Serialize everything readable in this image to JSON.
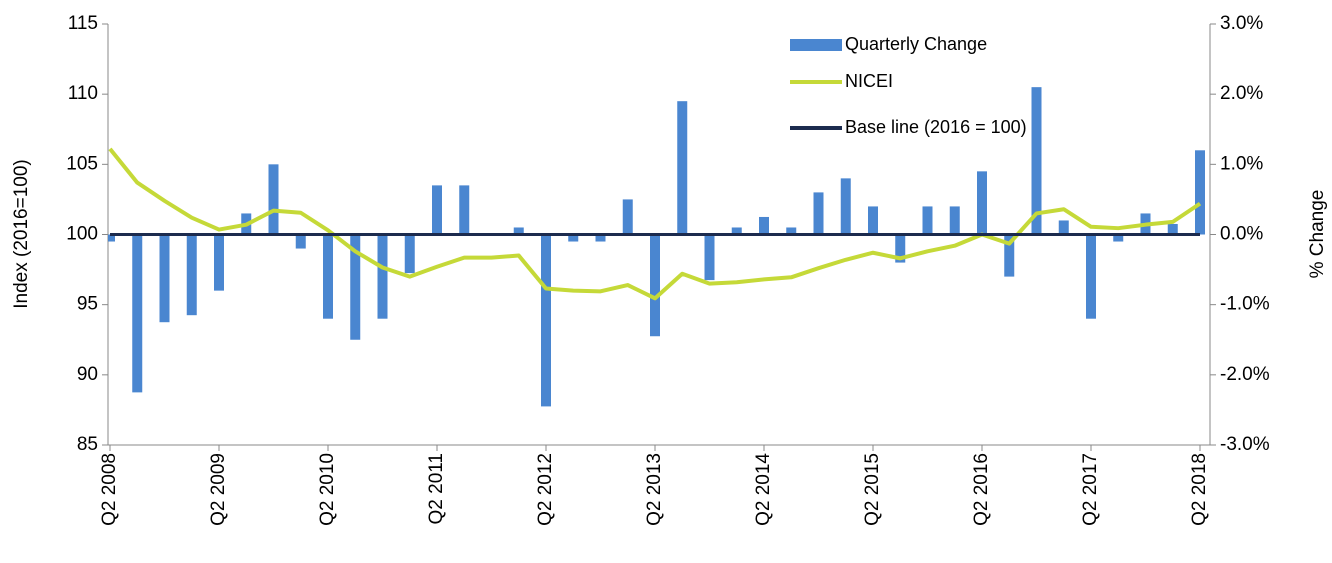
{
  "chart_data": {
    "type": "bar",
    "y_label": "Index (2016=100)",
    "y2_label": "% Change",
    "categories": [
      "Q2 2008",
      null,
      null,
      null,
      "Q2 2009",
      null,
      null,
      null,
      "Q2 2010",
      null,
      null,
      null,
      "Q2 2011",
      null,
      null,
      null,
      "Q2 2012",
      null,
      null,
      null,
      "Q2 2013",
      null,
      null,
      null,
      "Q2 2014",
      null,
      null,
      null,
      "Q2 2015",
      null,
      null,
      null,
      "Q2 2016",
      null,
      null,
      null,
      "Q2 2017",
      null,
      null,
      null,
      "Q2 2018"
    ],
    "series": [
      {
        "name": "Quarterly Change",
        "type": "bar",
        "axis": "y2",
        "color": "#4a86d0",
        "values": [
          -0.1,
          -2.25,
          -1.25,
          -1.15,
          -0.8,
          0.3,
          1.0,
          -0.2,
          -1.2,
          -1.5,
          -1.2,
          -0.55,
          0.7,
          0.7,
          0,
          0.1,
          -2.45,
          -0.1,
          -0.1,
          0.5,
          -1.45,
          1.9,
          -0.65,
          0.1,
          0.25,
          0.1,
          0.6,
          0.8,
          0.4,
          -0.4,
          0.4,
          0.4,
          0.9,
          -0.6,
          2.1,
          0.2,
          -1.2,
          -0.1,
          0.3,
          0.15,
          1.2
        ]
      },
      {
        "name": "NICEI",
        "type": "line",
        "color": "#c5d938",
        "values": [
          106.1,
          103.7,
          102.4,
          101.2,
          100.35,
          100.7,
          101.7,
          101.55,
          100.3,
          98.8,
          97.65,
          97.0,
          97.7,
          98.35,
          98.35,
          98.5,
          96.15,
          96.0,
          95.95,
          96.4,
          95.45,
          97.2,
          96.5,
          96.6,
          96.8,
          96.95,
          97.6,
          98.2,
          98.7,
          98.3,
          98.8,
          99.2,
          100.0,
          99.35,
          101.5,
          101.8,
          100.55,
          100.45,
          100.7,
          100.9,
          102.2
        ]
      },
      {
        "name": "Base line (2016 = 100)",
        "type": "line",
        "color": "#1c2b4e",
        "values": [
          100,
          100,
          100,
          100,
          100,
          100,
          100,
          100,
          100,
          100,
          100,
          100,
          100,
          100,
          100,
          100,
          100,
          100,
          100,
          100,
          100,
          100,
          100,
          100,
          100,
          100,
          100,
          100,
          100,
          100,
          100,
          100,
          100,
          100,
          100,
          100,
          100,
          100,
          100,
          100,
          100
        ]
      }
    ],
    "ylim": [
      85,
      115
    ],
    "yticks": [
      85,
      90,
      95,
      100,
      105,
      110,
      115
    ],
    "y2lim": [
      -3,
      3
    ],
    "y2ticks": [
      {
        "value": -3,
        "label": "-3.0%"
      },
      {
        "value": -2,
        "label": "-2.0%"
      },
      {
        "value": -1,
        "label": "-1.0%"
      },
      {
        "value": 0,
        "label": "0.0%"
      },
      {
        "value": 1,
        "label": "1.0%"
      },
      {
        "value": 2,
        "label": "2.0%"
      },
      {
        "value": 3,
        "label": "3.0%"
      }
    ],
    "grid": false
  }
}
